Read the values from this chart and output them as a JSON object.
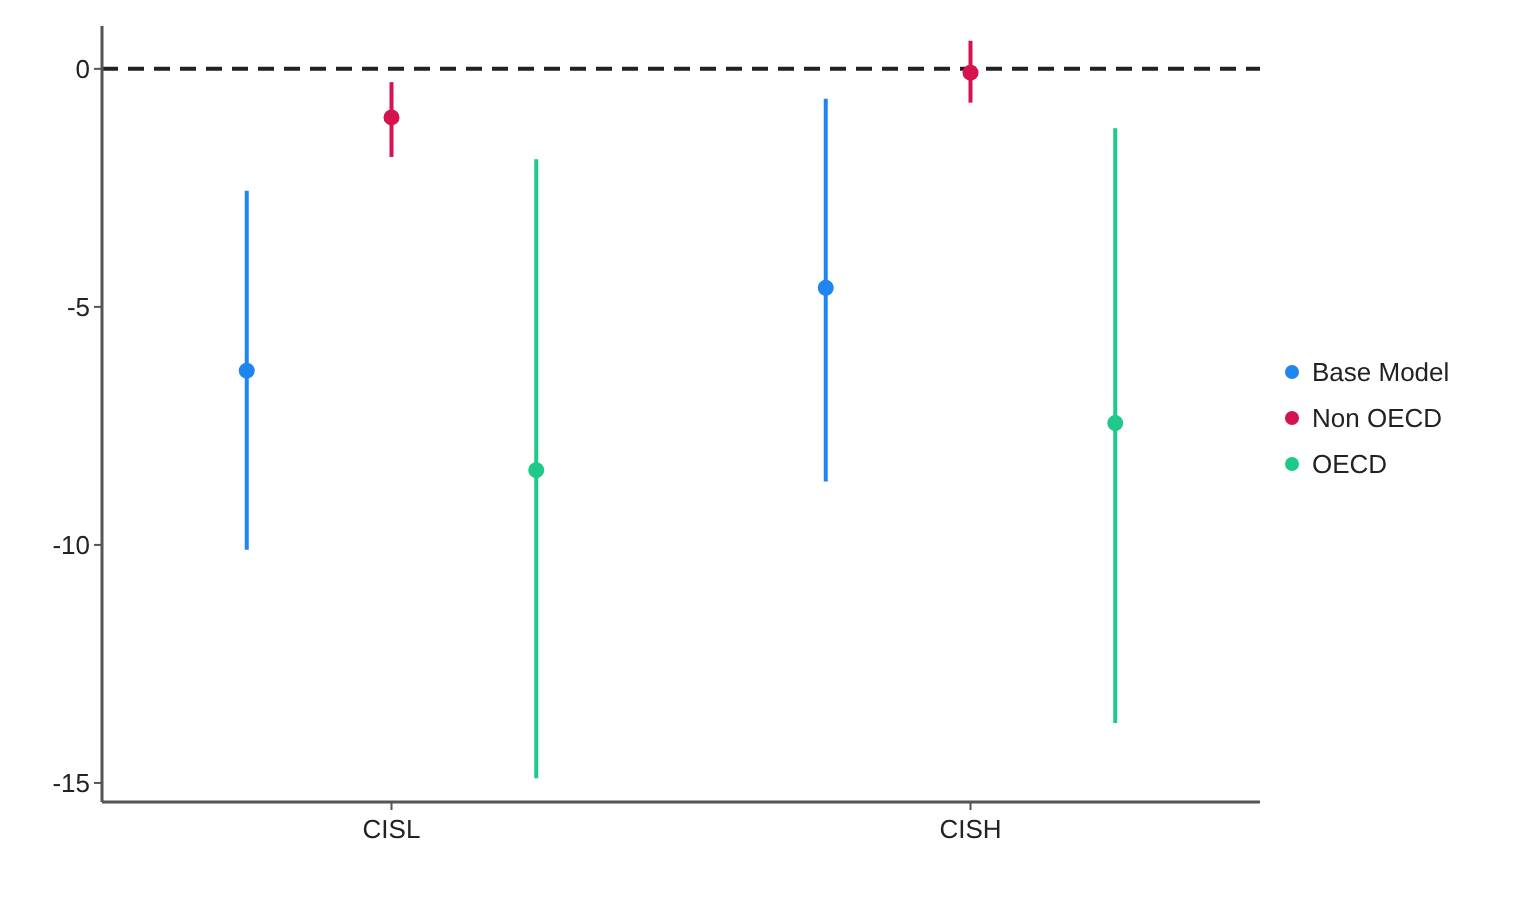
{
  "chart_data": {
    "type": "scatter",
    "categories": [
      "CISL",
      "CISH"
    ],
    "series": [
      {
        "name": "Base Model",
        "color": "#1f86f0",
        "values": [
          -6.34,
          -4.6
        ],
        "errors": [
          [
            -10.1,
            -2.56
          ],
          [
            -8.67,
            -0.63
          ]
        ]
      },
      {
        "name": "Non OECD",
        "color": "#d4134f",
        "values": [
          -1.02,
          -0.08
        ],
        "errors": [
          [
            -1.85,
            -0.28
          ],
          [
            -0.71,
            0.59
          ]
        ]
      },
      {
        "name": "OECD",
        "color": "#1ec98a",
        "values": [
          -8.43,
          -7.44
        ],
        "errors": [
          [
            -14.9,
            -1.9
          ],
          [
            -13.74,
            -1.25
          ]
        ]
      }
    ],
    "ylim": [
      -15.4,
      0.9
    ],
    "yticks": [
      -15,
      -10,
      -5,
      0
    ],
    "ref_lines": [
      {
        "axis": "y",
        "value": 0,
        "line_style": "dashed",
        "color": "#222222"
      }
    ],
    "grid": false,
    "legend": "right",
    "marker": "circle"
  }
}
